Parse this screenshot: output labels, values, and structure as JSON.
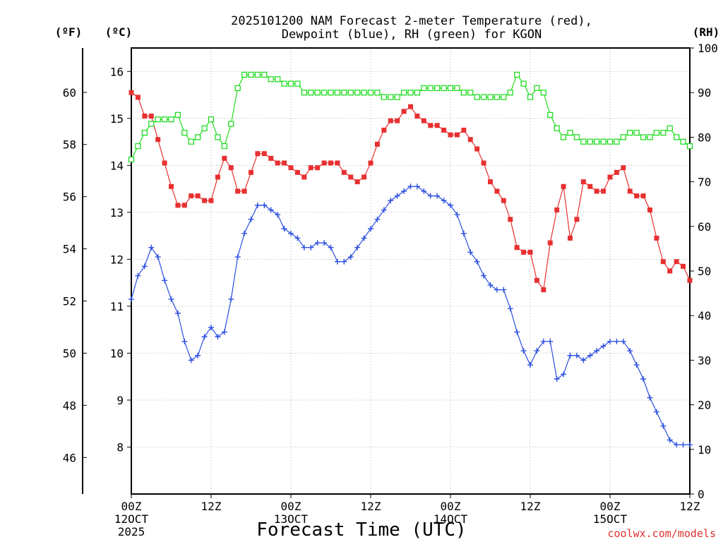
{
  "chart_data": {
    "type": "line",
    "title_lines": [
      "2025101200 NAM Forecast 2-meter Temperature (red),",
      "Dewpoint (blue), RH (green) for KGON"
    ],
    "xlabel": "Forecast Time (UTC)",
    "credit": "coolwx.com/models",
    "axes": {
      "celsius": {
        "unit": "(ºC)",
        "ylim": [
          7.0,
          16.5
        ],
        "ticks": [
          8,
          9,
          10,
          11,
          12,
          13,
          14,
          15,
          16
        ]
      },
      "fahrenheit": {
        "unit": "(ºF)",
        "ticks": [
          46,
          48,
          50,
          52,
          54,
          56,
          58,
          60
        ]
      },
      "rh": {
        "unit": "(RH)",
        "ylim": [
          0,
          100
        ],
        "ticks": [
          0,
          10,
          20,
          30,
          40,
          50,
          60,
          70,
          80,
          90,
          100
        ]
      },
      "x_hours": [
        0,
        84
      ],
      "x_ticks": [
        {
          "hour": 0,
          "lines": [
            "00Z",
            "12OCT",
            "2025"
          ]
        },
        {
          "hour": 12,
          "lines": [
            "12Z"
          ]
        },
        {
          "hour": 24,
          "lines": [
            "00Z",
            "13OCT"
          ]
        },
        {
          "hour": 36,
          "lines": [
            "12Z"
          ]
        },
        {
          "hour": 48,
          "lines": [
            "00Z",
            "14OCT"
          ]
        },
        {
          "hour": 60,
          "lines": [
            "12Z"
          ]
        },
        {
          "hour": 72,
          "lines": [
            "00Z",
            "15OCT"
          ]
        },
        {
          "hour": 84,
          "lines": [
            "12Z"
          ]
        }
      ]
    },
    "grid": true,
    "series": [
      {
        "name": "Temperature",
        "color": "#e83030",
        "marker": "filled-square",
        "axis": "celsius",
        "x": [
          0,
          1,
          2,
          3,
          4,
          5,
          6,
          7,
          8,
          9,
          10,
          11,
          12,
          13,
          14,
          15,
          16,
          17,
          18,
          19,
          20,
          21,
          22,
          23,
          24,
          25,
          26,
          27,
          28,
          29,
          30,
          31,
          32,
          33,
          34,
          35,
          36,
          37,
          38,
          39,
          40,
          41,
          42,
          43,
          44,
          45,
          46,
          47,
          48,
          49,
          50,
          51,
          52,
          53,
          54,
          55,
          56,
          57,
          58,
          59,
          60,
          61,
          62,
          63,
          64,
          65,
          66,
          67,
          68,
          69,
          70,
          71,
          72,
          73,
          74,
          75,
          76,
          77,
          78,
          79,
          80,
          81,
          82,
          83,
          84
        ],
        "values": [
          15.55,
          15.45,
          15.05,
          15.05,
          14.55,
          14.05,
          13.55,
          13.15,
          13.15,
          13.35,
          13.35,
          13.25,
          13.25,
          13.75,
          14.15,
          13.95,
          13.45,
          13.45,
          13.85,
          14.25,
          14.25,
          14.15,
          14.05,
          14.05,
          13.95,
          13.85,
          13.75,
          13.95,
          13.95,
          14.05,
          14.05,
          14.05,
          13.85,
          13.75,
          13.65,
          13.75,
          14.05,
          14.45,
          14.75,
          14.95,
          14.95,
          15.15,
          15.25,
          15.05,
          14.95,
          14.85,
          14.85,
          14.75,
          14.65,
          14.65,
          14.75,
          14.55,
          14.35,
          14.05,
          13.65,
          13.45,
          13.25,
          12.85,
          12.25,
          12.15,
          12.15,
          11.55,
          11.35,
          12.35,
          13.05,
          13.55,
          12.45,
          12.85,
          13.65,
          13.55,
          13.45,
          13.45,
          13.75,
          13.85,
          13.95,
          13.45,
          13.35,
          13.35,
          13.05,
          12.45,
          11.95,
          11.75,
          11.95,
          11.85,
          11.55
        ]
      },
      {
        "name": "Dewpoint",
        "color": "#2b4fe0",
        "marker": "plus",
        "axis": "celsius",
        "x": [
          0,
          1,
          2,
          3,
          4,
          5,
          6,
          7,
          8,
          9,
          10,
          11,
          12,
          13,
          14,
          15,
          16,
          17,
          18,
          19,
          20,
          21,
          22,
          23,
          24,
          25,
          26,
          27,
          28,
          29,
          30,
          31,
          32,
          33,
          34,
          35,
          36,
          37,
          38,
          39,
          40,
          41,
          42,
          43,
          44,
          45,
          46,
          47,
          48,
          49,
          50,
          51,
          52,
          53,
          54,
          55,
          56,
          57,
          58,
          59,
          60,
          61,
          62,
          63,
          64,
          65,
          66,
          67,
          68,
          69,
          70,
          71,
          72,
          73,
          74,
          75,
          76,
          77,
          78,
          79,
          80,
          81,
          82,
          83,
          84
        ],
        "values": [
          11.15,
          11.65,
          11.85,
          12.25,
          12.05,
          11.55,
          11.15,
          10.85,
          10.25,
          9.85,
          9.95,
          10.35,
          10.55,
          10.35,
          10.45,
          11.15,
          12.05,
          12.55,
          12.85,
          13.15,
          13.15,
          13.05,
          12.95,
          12.65,
          12.55,
          12.45,
          12.25,
          12.25,
          12.35,
          12.35,
          12.25,
          11.95,
          11.95,
          12.05,
          12.25,
          12.45,
          12.65,
          12.85,
          13.05,
          13.25,
          13.35,
          13.45,
          13.55,
          13.55,
          13.45,
          13.35,
          13.35,
          13.25,
          13.15,
          12.95,
          12.55,
          12.15,
          11.95,
          11.65,
          11.45,
          11.35,
          11.35,
          10.95,
          10.45,
          10.05,
          9.75,
          10.05,
          10.25,
          10.25,
          9.45,
          9.55,
          9.95,
          9.95,
          9.85,
          9.95,
          10.05,
          10.15,
          10.25,
          10.25,
          10.25,
          10.05,
          9.75,
          9.45,
          9.05,
          8.75,
          8.45,
          8.15,
          8.05,
          8.05,
          8.05
        ]
      },
      {
        "name": "RH",
        "color": "#22dd22",
        "marker": "open-square",
        "axis": "rh",
        "x": [
          0,
          1,
          2,
          3,
          4,
          5,
          6,
          7,
          8,
          9,
          10,
          11,
          12,
          13,
          14,
          15,
          16,
          17,
          18,
          19,
          20,
          21,
          22,
          23,
          24,
          25,
          26,
          27,
          28,
          29,
          30,
          31,
          32,
          33,
          34,
          35,
          36,
          37,
          38,
          39,
          40,
          41,
          42,
          43,
          44,
          45,
          46,
          47,
          48,
          49,
          50,
          51,
          52,
          53,
          54,
          55,
          56,
          57,
          58,
          59,
          60,
          61,
          62,
          63,
          64,
          65,
          66,
          67,
          68,
          69,
          70,
          71,
          72,
          73,
          74,
          75,
          76,
          77,
          78,
          79,
          80,
          81,
          82,
          83,
          84
        ],
        "values": [
          75,
          78,
          81,
          83,
          84,
          84,
          84,
          85,
          81,
          79,
          80,
          82,
          84,
          80,
          78,
          83,
          91,
          94,
          94,
          94,
          94,
          93,
          93,
          92,
          92,
          92,
          90,
          90,
          90,
          90,
          90,
          90,
          90,
          90,
          90,
          90,
          90,
          90,
          89,
          89,
          89,
          90,
          90,
          90,
          91,
          91,
          91,
          91,
          91,
          91,
          90,
          90,
          89,
          89,
          89,
          89,
          89,
          90,
          94,
          92,
          89,
          91,
          90,
          85,
          82,
          80,
          81,
          80,
          79,
          79,
          79,
          79,
          79,
          79,
          80,
          81,
          81,
          80,
          80,
          81,
          81,
          82,
          80,
          79,
          78
        ]
      }
    ]
  }
}
